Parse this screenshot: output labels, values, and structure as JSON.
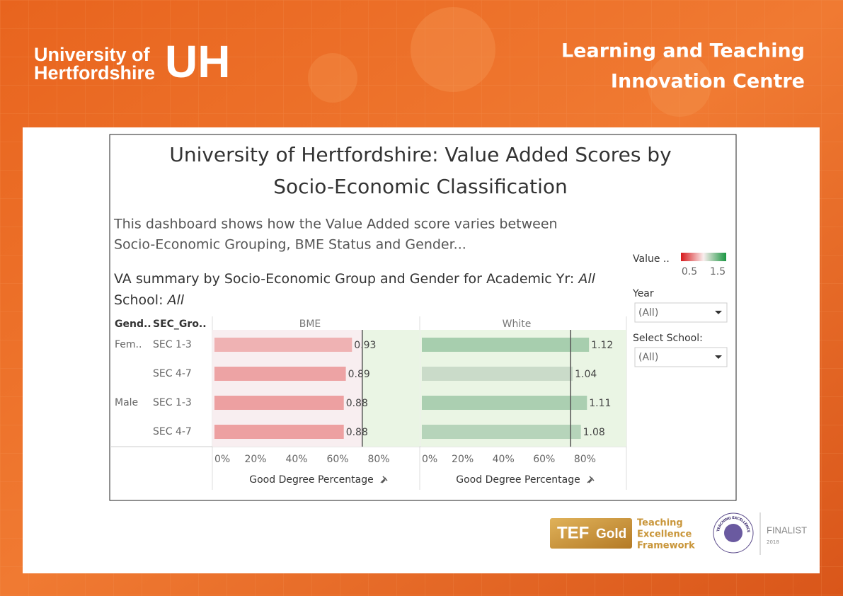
{
  "header": {
    "logo_text": [
      "University of",
      "Hertfordshire"
    ],
    "logo_mark": "UH",
    "centre": [
      "Learning and Teaching",
      "Innovation Centre"
    ]
  },
  "dashboard": {
    "title": [
      "University of Hertfordshire: Value Added Scores by",
      "Socio-Economic Classification"
    ],
    "description": [
      "This dashboard shows how the Value Added score varies between",
      "Socio-Economic Grouping, BME Status and Gender..."
    ],
    "summary": {
      "prefix": "VA summary by Socio-Economic Group and Gender for Academic Yr:",
      "year": "All",
      "school_prefix": "School:",
      "school": "All"
    },
    "row_headers": [
      "Gend..",
      "SEC_Gro.."
    ],
    "genders": [
      "Fem..",
      null,
      "Male",
      null
    ],
    "legend": {
      "title": "Value ..",
      "range": [
        0.5,
        1.5
      ],
      "colors": [
        "#d7191c",
        "#f9eeee",
        "#1a9641"
      ]
    },
    "filters": [
      {
        "label": "Year",
        "value": "(All)"
      },
      {
        "label": "Select School:",
        "value": "(All)"
      }
    ]
  },
  "chart_data": [
    {
      "type": "bar",
      "title": "BME",
      "categories": [
        "SEC 1-3",
        "SEC 4-7",
        "SEC 1-3",
        "SEC 4-7"
      ],
      "values": [
        67,
        64,
        63,
        63
      ],
      "va_scores": [
        0.93,
        0.89,
        0.88,
        0.88
      ],
      "reference_line": 72,
      "xlim": [
        0,
        100
      ],
      "xticks": [
        {
          "value": 0,
          "label": "0%"
        },
        {
          "value": 20,
          "label": "20%"
        },
        {
          "value": 40,
          "label": "40%"
        },
        {
          "value": 60,
          "label": "60%"
        },
        {
          "value": 80,
          "label": "80%"
        }
      ],
      "xlabel": "Good Degree Percentage"
    },
    {
      "type": "bar",
      "title": "White",
      "categories": [
        "SEC 1-3",
        "SEC 4-7",
        "SEC 1-3",
        "SEC 4-7"
      ],
      "values": [
        82,
        74,
        81,
        78
      ],
      "va_scores": [
        1.12,
        1.04,
        1.11,
        1.08
      ],
      "reference_line": 73,
      "xlim": [
        0,
        100
      ],
      "xticks": [
        {
          "value": 0,
          "label": "0%"
        },
        {
          "value": 20,
          "label": "20%"
        },
        {
          "value": 40,
          "label": "40%"
        },
        {
          "value": 60,
          "label": "60%"
        },
        {
          "value": 80,
          "label": "80%"
        }
      ],
      "xlabel": "Good Degree Percentage"
    }
  ],
  "footer": {
    "tef": "TEF",
    "tef_level": "Gold",
    "tef_text": [
      "Teaching",
      "Excellence",
      "Framework"
    ],
    "award": "GLOBAL TEACHING EXCELLENCE AWARD",
    "award_status": "FINALIST",
    "award_year": "2018"
  }
}
